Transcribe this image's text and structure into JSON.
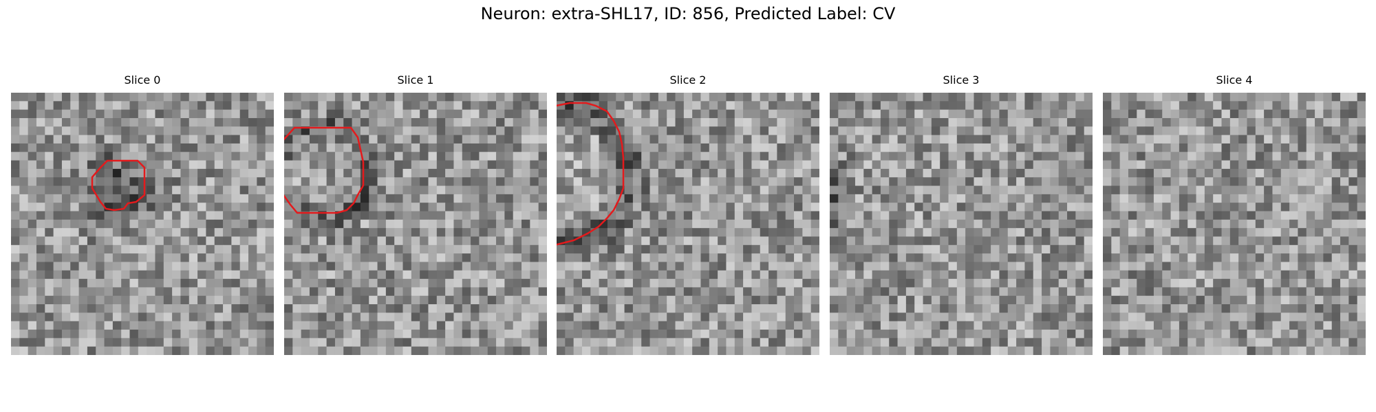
{
  "figure": {
    "title": "Neuron: extra-SHL17, ID: 856, Predicted Label: CV",
    "outline_color": "#e41a1c",
    "colormap": "grayscale"
  },
  "panels": [
    {
      "title": "Slice 0",
      "seed": 11,
      "dark_ring": false,
      "dark_blob": true,
      "contour": [
        [
          146,
          244
        ],
        [
          156,
          234
        ],
        [
          176,
          234
        ],
        [
          200,
          234
        ],
        [
          210,
          244
        ],
        [
          210,
          264
        ],
        [
          210,
          284
        ],
        [
          198,
          294
        ],
        [
          186,
          296
        ],
        [
          180,
          304
        ],
        [
          166,
          306
        ],
        [
          154,
          304
        ],
        [
          146,
          294
        ],
        [
          140,
          284
        ],
        [
          134,
          274
        ],
        [
          134,
          258
        ]
      ]
    },
    {
      "title": "Slice 1",
      "seed": 23,
      "dark_ring": true,
      "dark_blob": false,
      "contour": [
        [
          410,
          206
        ],
        [
          428,
          186
        ],
        [
          450,
          186
        ],
        [
          474,
          186
        ],
        [
          494,
          186
        ],
        [
          510,
          186
        ],
        [
          520,
          200
        ],
        [
          524,
          218
        ],
        [
          528,
          236
        ],
        [
          528,
          254
        ],
        [
          528,
          270
        ],
        [
          520,
          284
        ],
        [
          514,
          296
        ],
        [
          504,
          306
        ],
        [
          490,
          310
        ],
        [
          470,
          310
        ],
        [
          450,
          310
        ],
        [
          432,
          310
        ],
        [
          422,
          298
        ],
        [
          412,
          284
        ],
        [
          408,
          270
        ],
        [
          408,
          250
        ],
        [
          408,
          230
        ]
      ]
    },
    {
      "title": "Slice 2",
      "seed": 37,
      "dark_ring": true,
      "dark_blob": false,
      "contour": [
        [
          740,
          206
        ],
        [
          752,
          192
        ],
        [
          762,
          182
        ],
        [
          776,
          172
        ],
        [
          792,
          160
        ],
        [
          808,
          154
        ],
        [
          828,
          150
        ],
        [
          852,
          150
        ],
        [
          866,
          154
        ],
        [
          882,
          162
        ],
        [
          892,
          176
        ],
        [
          900,
          192
        ],
        [
          904,
          210
        ],
        [
          906,
          230
        ],
        [
          906,
          256
        ],
        [
          906,
          274
        ],
        [
          900,
          290
        ],
        [
          892,
          306
        ],
        [
          882,
          318
        ],
        [
          870,
          330
        ],
        [
          854,
          340
        ],
        [
          834,
          350
        ],
        [
          810,
          356
        ],
        [
          790,
          358
        ],
        [
          772,
          352
        ],
        [
          756,
          342
        ],
        [
          744,
          328
        ],
        [
          734,
          310
        ],
        [
          730,
          292
        ],
        [
          728,
          272
        ],
        [
          722,
          262
        ],
        [
          730,
          252
        ],
        [
          732,
          232
        ],
        [
          736,
          218
        ]
      ]
    },
    {
      "title": "Slice 3",
      "seed": 53,
      "dark_ring": true,
      "dark_blob": false,
      "contour": [
        [
          1036,
          218
        ],
        [
          1050,
          204
        ],
        [
          1066,
          192
        ],
        [
          1088,
          186
        ],
        [
          1106,
          184
        ],
        [
          1118,
          182
        ],
        [
          1124,
          174
        ],
        [
          1130,
          182
        ],
        [
          1142,
          184
        ],
        [
          1154,
          186
        ],
        [
          1164,
          196
        ],
        [
          1174,
          212
        ],
        [
          1182,
          228
        ],
        [
          1186,
          248
        ],
        [
          1188,
          270
        ],
        [
          1190,
          296
        ],
        [
          1186,
          314
        ],
        [
          1178,
          330
        ],
        [
          1168,
          346
        ],
        [
          1154,
          360
        ],
        [
          1136,
          374
        ],
        [
          1116,
          384
        ],
        [
          1094,
          386
        ],
        [
          1072,
          386
        ],
        [
          1058,
          382
        ],
        [
          1046,
          372
        ],
        [
          1030,
          364
        ],
        [
          1018,
          348
        ],
        [
          1010,
          330
        ],
        [
          1004,
          310
        ],
        [
          1004,
          288
        ],
        [
          1004,
          268
        ],
        [
          1008,
          250
        ],
        [
          1018,
          236
        ]
      ]
    },
    {
      "title": "Slice 4",
      "seed": 71,
      "dark_ring": true,
      "dark_blob": false,
      "contour": [
        [
          1398,
          226
        ],
        [
          1414,
          212
        ],
        [
          1434,
          202
        ],
        [
          1454,
          196
        ],
        [
          1470,
          190
        ],
        [
          1478,
          182
        ],
        [
          1486,
          190
        ],
        [
          1502,
          190
        ],
        [
          1518,
          190
        ],
        [
          1528,
          200
        ],
        [
          1536,
          212
        ],
        [
          1544,
          228
        ],
        [
          1548,
          248
        ],
        [
          1548,
          268
        ],
        [
          1548,
          290
        ],
        [
          1544,
          308
        ],
        [
          1536,
          326
        ],
        [
          1522,
          340
        ],
        [
          1504,
          350
        ],
        [
          1484,
          354
        ],
        [
          1466,
          354
        ],
        [
          1452,
          356
        ],
        [
          1434,
          352
        ],
        [
          1420,
          344
        ],
        [
          1404,
          330
        ],
        [
          1392,
          318
        ],
        [
          1388,
          300
        ],
        [
          1388,
          280
        ],
        [
          1388,
          262
        ],
        [
          1390,
          244
        ]
      ]
    }
  ]
}
